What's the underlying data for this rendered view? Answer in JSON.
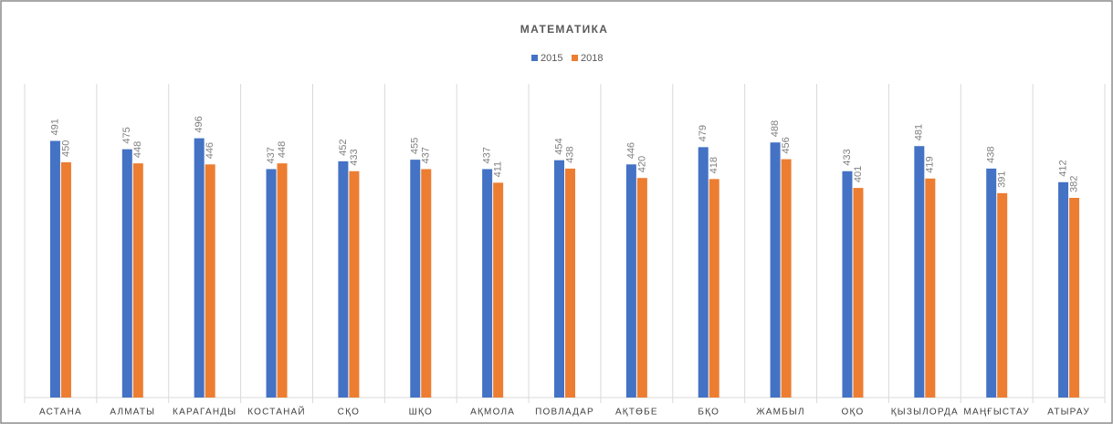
{
  "chart_data": {
    "type": "bar",
    "title": "МАТЕМАТИКА",
    "categories": [
      "АСТАНА",
      "АЛМАТЫ",
      "КАРАГАНДЫ",
      "КОСТАНАЙ",
      "СҚО",
      "ШҚО",
      "АҚМОЛА",
      "ПОВЛАДАР",
      "АҚТӨБЕ",
      "БҚО",
      "ЖАМБЫЛ",
      "ОҚО",
      "ҚЫЗЫЛОРДА",
      "МАҢҒЫСТАУ",
      "АТЫРАУ"
    ],
    "series": [
      {
        "name": "2015",
        "color": "#4472c4",
        "values": [
          491,
          475,
          496,
          437,
          452,
          455,
          437,
          454,
          446,
          479,
          488,
          433,
          481,
          438,
          412
        ]
      },
      {
        "name": "2018",
        "color": "#ed7d31",
        "values": [
          450,
          448,
          446,
          448,
          433,
          437,
          411,
          438,
          420,
          418,
          456,
          401,
          419,
          391,
          382
        ]
      }
    ],
    "ylim": [
      0,
      600
    ],
    "legend": "top"
  }
}
